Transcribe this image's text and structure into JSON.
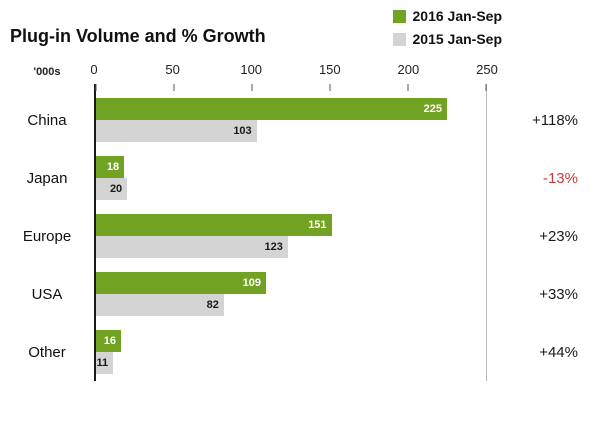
{
  "title": "Plug-in Volume and % Growth",
  "colors": {
    "bar_2016": "#71a221",
    "bar_2015": "#d4d4d4",
    "growth_positive": "#1a1a1a",
    "growth_negative": "#cc3b3b"
  },
  "chart_data": {
    "type": "bar",
    "orientation": "horizontal",
    "title": "Plug-in Volume and % Growth",
    "unit_label": "'000s",
    "xlim": [
      0,
      250
    ],
    "x_ticks": [
      0,
      50,
      100,
      150,
      200,
      250
    ],
    "grid": false,
    "legend_position": "top-right",
    "categories": [
      "China",
      "Japan",
      "Europe",
      "USA",
      "Other"
    ],
    "series": [
      {
        "name": "2016 Jan-Sep",
        "color": "#71a221",
        "values": [
          225,
          18,
          151,
          109,
          16
        ]
      },
      {
        "name": "2015 Jan-Sep",
        "color": "#d4d4d4",
        "values": [
          103,
          20,
          123,
          82,
          11
        ]
      }
    ],
    "growth": [
      {
        "category": "China",
        "label": "+118%",
        "negative": false
      },
      {
        "category": "Japan",
        "label": "-13%",
        "negative": true
      },
      {
        "category": "Europe",
        "label": "+23%",
        "negative": false
      },
      {
        "category": "USA",
        "label": "+33%",
        "negative": false
      },
      {
        "category": "Other",
        "label": "+44%",
        "negative": false
      }
    ]
  }
}
